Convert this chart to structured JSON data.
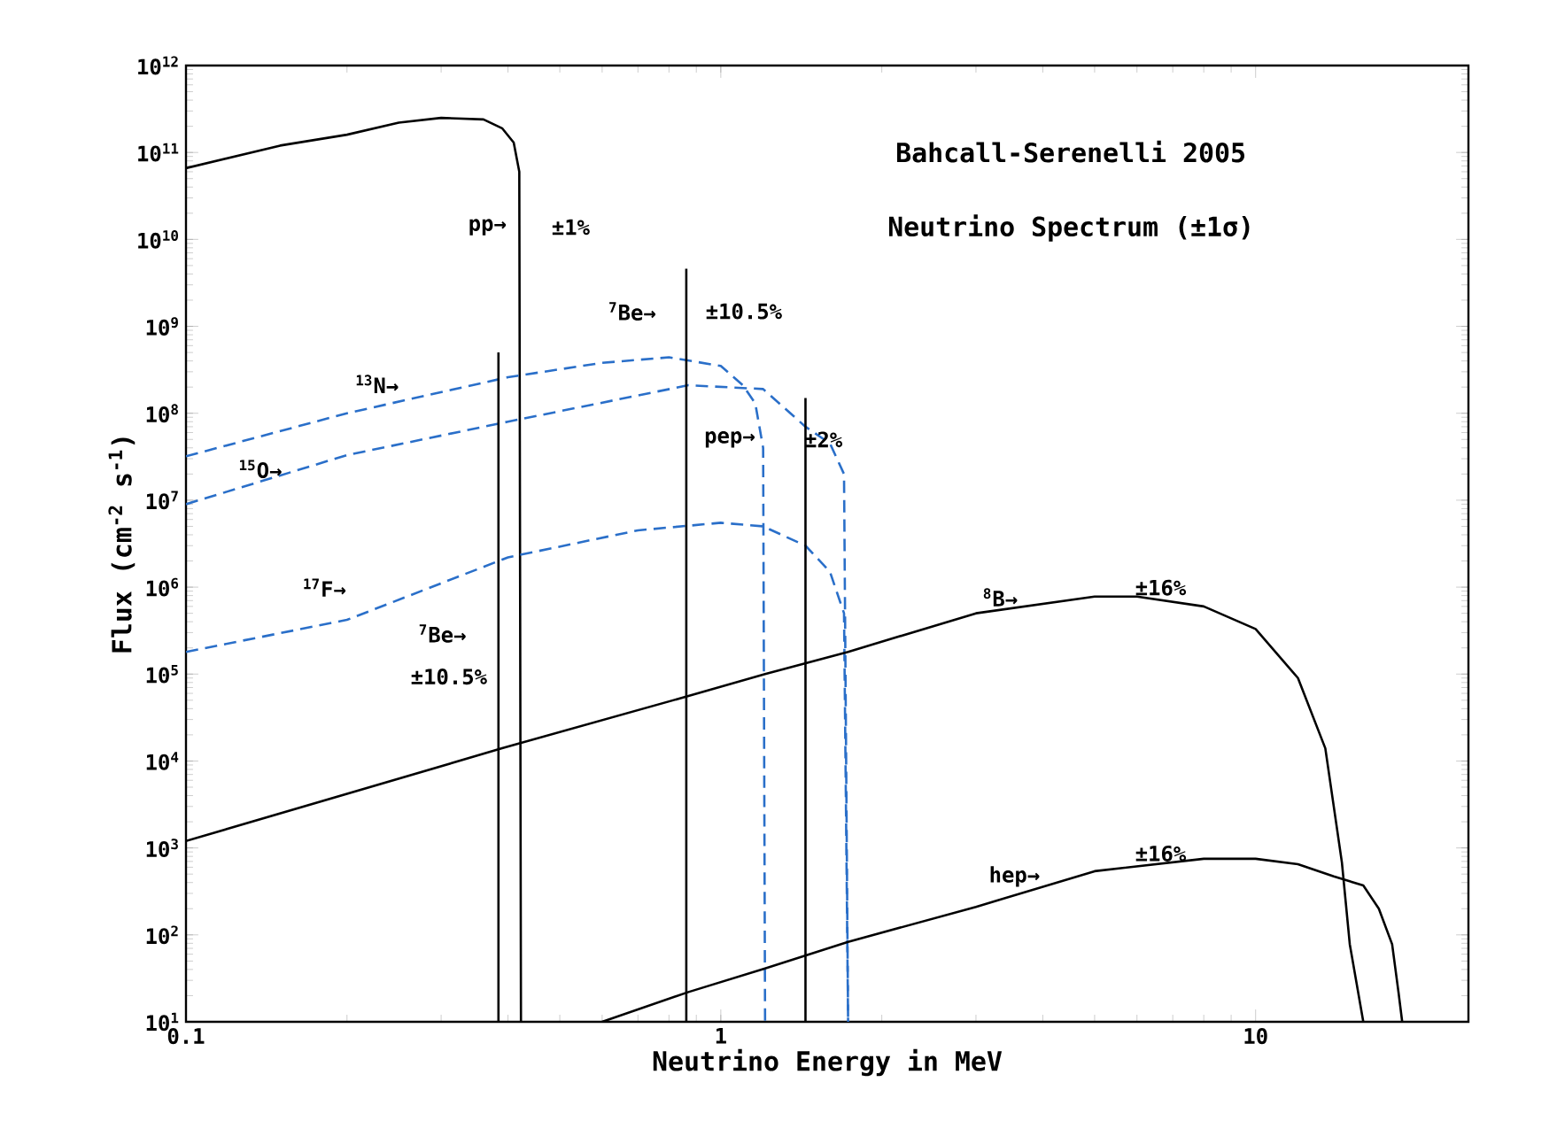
{
  "chart_data": {
    "type": "line",
    "title": "Bahcall-Serenelli 2005",
    "subtitle": "Neutrino Spectrum (±1σ)",
    "xlabel": "Neutrino Energy in MeV",
    "ylabel": "Flux (cm$^{-2}$ s$^{-1}$)",
    "log": "xy",
    "xlim": [
      0.1,
      25
    ],
    "ylim": [
      10,
      1000000000000.0
    ],
    "xticks": [
      0.1,
      1,
      10
    ],
    "yticks": [
      {
        "value": 10,
        "label": "10$^{1}$"
      },
      {
        "value": 100,
        "label": "10$^{2}$"
      },
      {
        "value": 1000,
        "label": "10$^{3}$"
      },
      {
        "value": 10000,
        "label": "10$^{4}$"
      },
      {
        "value": 100000,
        "label": "10$^{5}$"
      },
      {
        "value": 1000000,
        "label": "10$^{6}$"
      },
      {
        "value": 10000000,
        "label": "10$^{7}$"
      },
      {
        "value": 100000000,
        "label": "10$^{8}$"
      },
      {
        "value": 1000000000,
        "label": "10$^{9}$"
      },
      {
        "value": 10000000000,
        "label": "10$^{10}$"
      },
      {
        "value": 100000000000,
        "label": "10$^{11}$"
      },
      {
        "value": 1000000000000,
        "label": "10$^{12}$"
      }
    ],
    "marker": "none",
    "series": [
      {
        "color": "#000000",
        "line_style": "solid",
        "x": [
          0.1,
          0.15,
          0.2,
          0.25,
          0.3,
          0.36,
          0.39,
          0.41,
          0.42,
          0.423
        ],
        "values": [
          66000000000.0,
          120000000000.0,
          160000000000.0,
          220000000000.0,
          250000000000.0,
          240000000000.0,
          190000000000.0,
          130000000000.0,
          60000000000.0,
          10
        ]
      },
      {
        "color": "#2a6fc9",
        "line_style": "dashed",
        "x": [
          0.1,
          0.2,
          0.4,
          0.6,
          0.8,
          1.0,
          1.1,
          1.16,
          1.2,
          1.21
        ],
        "values": [
          32000000.0,
          100000000.0,
          260000000.0,
          380000000.0,
          440000000.0,
          350000000.0,
          210000000.0,
          130000000.0,
          40000000.0,
          10
        ]
      },
      {
        "color": "#2a6fc9",
        "line_style": "dashed",
        "x": [
          0.1,
          0.2,
          0.4,
          0.87,
          1.2,
          1.44,
          1.6,
          1.7,
          1.73
        ],
        "values": [
          9000000.0,
          33000000.0,
          80000000.0,
          210000000.0,
          190000000.0,
          70000000.0,
          45000000.0,
          20000000.0,
          10
        ]
      },
      {
        "color": "#2a6fc9",
        "line_style": "dashed",
        "x": [
          0.1,
          0.2,
          0.4,
          0.7,
          1.0,
          1.2,
          1.44,
          1.6,
          1.7,
          1.73
        ],
        "values": [
          180000.0,
          420000.0,
          2200000.0,
          4500000.0,
          5500000.0,
          5000000.0,
          3000000.0,
          1500000.0,
          500000.0,
          10
        ]
      },
      {
        "color": "#000000",
        "line_style": "solid",
        "x": [
          0.1,
          0.39,
          0.87,
          1.21,
          1.73,
          3,
          5,
          6,
          8,
          10,
          12,
          13.5,
          14.5,
          15,
          15.9
        ],
        "values": [
          1200.0,
          14000.0,
          56000.0,
          100000.0,
          180000.0,
          500000.0,
          780000.0,
          780000.0,
          600000.0,
          330000.0,
          90000.0,
          14000.0,
          680,
          78,
          10
        ]
      },
      {
        "color": "#000000",
        "line_style": "solid",
        "x": [
          0.6,
          0.87,
          1.21,
          1.73,
          3,
          5,
          8,
          10,
          12,
          14,
          15.9,
          17,
          18,
          18.5,
          18.8
        ],
        "values": [
          10,
          22,
          41,
          83,
          210,
          540,
          750,
          750,
          650,
          470,
          370,
          200,
          78,
          22,
          10
        ]
      },
      {
        "color": "#000000",
        "line_style": "solid",
        "x": [
          0.384,
          0.384
        ],
        "values": [
          10,
          500000000.0
        ]
      },
      {
        "color": "#000000",
        "line_style": "solid",
        "x": [
          0.862,
          0.862
        ],
        "values": [
          10,
          4600000000.0
        ]
      },
      {
        "color": "#000000",
        "line_style": "solid",
        "x": [
          1.44,
          1.44
        ],
        "values": [
          10,
          150000000.0
        ]
      }
    ],
    "annotations": [
      "pp→",
      "±1%",
      "$^{7}$Be→",
      "±10.5%",
      "pep→",
      "±2%",
      "$^{13}$N→",
      "$^{15}$O→",
      "$^{17}$F→",
      "$^{7}$Be→",
      "±10.5%",
      "$^{8}$B→",
      "±16%",
      "hep→",
      "±16%"
    ]
  }
}
